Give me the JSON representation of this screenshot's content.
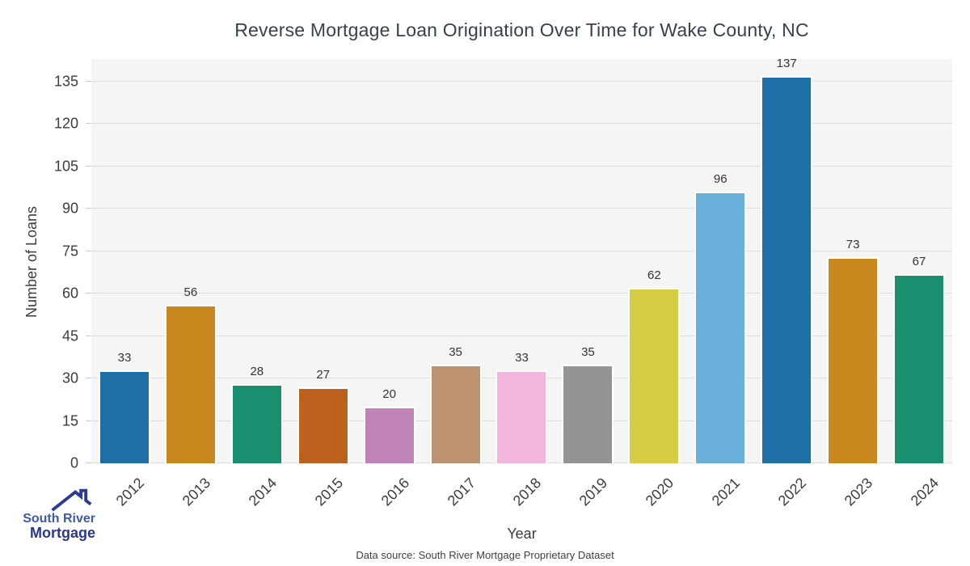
{
  "chart_data": {
    "type": "bar",
    "title": "Reverse Mortgage Loan Origination Over Time for Wake County, NC",
    "xlabel": "Year",
    "ylabel": "Number of Loans",
    "categories": [
      "2012",
      "2013",
      "2014",
      "2015",
      "2016",
      "2017",
      "2018",
      "2019",
      "2020",
      "2021",
      "2022",
      "2023",
      "2024"
    ],
    "values": [
      33,
      56,
      28,
      27,
      20,
      35,
      33,
      35,
      62,
      96,
      137,
      73,
      67
    ],
    "bar_colors": [
      "#1d6fa5",
      "#c8881e",
      "#1a8f70",
      "#bc611e",
      "#c083b7",
      "#bd9271",
      "#f2b6dd",
      "#949494",
      "#d6cd45",
      "#68b0d9",
      "#1d6fa5",
      "#c8881e",
      "#1a8f70"
    ],
    "yticks": [
      0,
      15,
      30,
      45,
      60,
      75,
      90,
      105,
      120,
      135
    ],
    "ylim": [
      0,
      143
    ],
    "grid": "horizontal",
    "legend": "none",
    "plot_bg": "#f5f5f5",
    "grid_color": "#dcdcdc"
  },
  "footer": {
    "data_source": "Data source: South River Mortgage Proprietary Dataset"
  },
  "logo": {
    "line1": "South River",
    "line2": "Mortgage",
    "icon": "house-roof-icon",
    "line1_color": "#3e59ad",
    "line2_color": "#283695"
  }
}
